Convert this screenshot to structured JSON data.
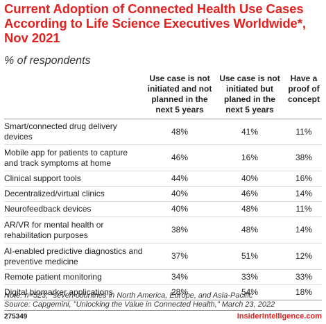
{
  "chart_data": {
    "type": "table",
    "title": "Current Adoption of Connected Health Use Cases According to Life Science Executives Worldwide*, Nov 2021",
    "subtitle": "% of respondents",
    "columns": [
      "Use case is not initiated and not planned in the next 5 years",
      "Use case is not initiated but planed in the next 5 years",
      "Have a proof of concept"
    ],
    "rows": [
      {
        "label": "Smart/connected drug delivery devices",
        "values": [
          "48%",
          "41%",
          "11%"
        ]
      },
      {
        "label": "Mobile app for patients to capture and track symptoms at home",
        "values": [
          "46%",
          "16%",
          "38%"
        ]
      },
      {
        "label": "Clinical support tools",
        "values": [
          "44%",
          "40%",
          "16%"
        ]
      },
      {
        "label": "Decentralized/virtual clinics",
        "values": [
          "40%",
          "46%",
          "14%"
        ]
      },
      {
        "label": "Neurofeedback devices",
        "values": [
          "40%",
          "48%",
          "11%"
        ]
      },
      {
        "label": "AR/VR for mental health or rehabilitation purposes",
        "values": [
          "38%",
          "48%",
          "14%"
        ]
      },
      {
        "label": "AI-enabled predictive diagnostics and preventive medicine",
        "values": [
          "37%",
          "51%",
          "12%"
        ]
      },
      {
        "label": "Remote patient monitoring",
        "values": [
          "34%",
          "33%",
          "33%"
        ]
      },
      {
        "label": "Digital biomarker applications",
        "values": [
          "28%",
          "54%",
          "18%"
        ]
      }
    ]
  },
  "notes": [
    "Note: n=523; *seven countries in North America, Europe, and Asia-Pacific",
    "Source: Capgemini, \"Unlocking the Value in Connected Health,\" March 23, 2022"
  ],
  "chart_id": "275349",
  "brand": "InsiderIntelligence.com",
  "colors": {
    "title": "#e0211f",
    "brand": "#e0211f"
  }
}
